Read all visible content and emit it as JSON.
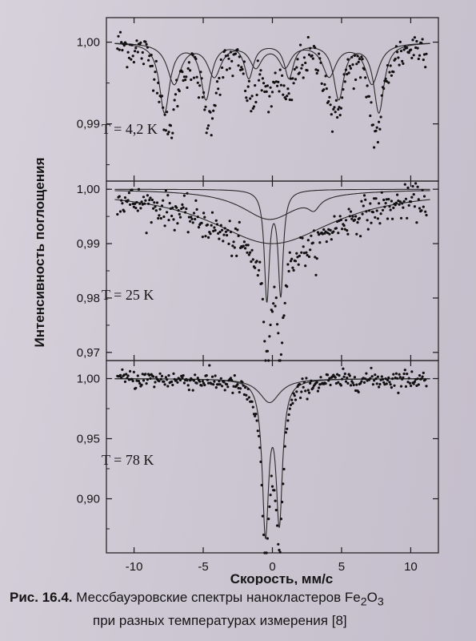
{
  "chart_data": {
    "type": "scatter",
    "xlabel": "Скорость, мм/с",
    "ylabel": "Интенсивность поглощения",
    "xlim": [
      -12,
      12
    ],
    "x_ticks": [
      "-10",
      "-5",
      "0",
      "5",
      "10"
    ],
    "x_tick_values": [
      -10,
      -5,
      0,
      5,
      10
    ],
    "panels": [
      {
        "label": "T = 4,2 K",
        "ylim": [
          0.983,
          1.003
        ],
        "y_ticks": [
          "1,00",
          "0,99"
        ],
        "y_tick_values": [
          1.0,
          0.99
        ],
        "series": [
          {
            "kind": "fit",
            "baseline": 1.0,
            "peaks": [
              [
                -7.8,
                0.0085,
                0.45
              ],
              [
                -4.8,
                0.0068,
                0.45
              ],
              [
                -1.7,
                0.0042,
                0.4
              ],
              [
                1.2,
                0.0042,
                0.4
              ],
              [
                4.8,
                0.0068,
                0.45
              ],
              [
                7.7,
                0.0085,
                0.45
              ]
            ]
          },
          {
            "kind": "fit",
            "baseline": 1.0,
            "peaks": [
              [
                -7.1,
                0.005,
                0.6
              ],
              [
                -4.2,
                0.004,
                0.6
              ],
              [
                -1.2,
                0.0028,
                0.55
              ],
              [
                0.9,
                0.0028,
                0.55
              ],
              [
                4.1,
                0.004,
                0.6
              ],
              [
                7.2,
                0.005,
                0.6
              ]
            ]
          },
          {
            "kind": "data",
            "baseline": 1.0,
            "noise": 0.0012,
            "peaks": [
              [
                -7.5,
                0.011,
                0.6
              ],
              [
                -4.6,
                0.009,
                0.6
              ],
              [
                -1.5,
                0.0065,
                0.55
              ],
              [
                1.1,
                0.0065,
                0.55
              ],
              [
                4.5,
                0.009,
                0.6
              ],
              [
                7.5,
                0.011,
                0.6
              ],
              [
                -0.2,
                0.006,
                0.25
              ]
            ]
          }
        ]
      },
      {
        "label": "T = 25 K",
        "ylim": [
          0.9685,
          1.0015
        ],
        "y_ticks": [
          "1,00",
          "0,99",
          "0,98",
          "0,97"
        ],
        "y_tick_values": [
          1.0,
          0.99,
          0.98,
          0.97
        ],
        "series": [
          {
            "kind": "fit",
            "baseline": 1.0,
            "peaks": [
              [
                0,
                0.01,
                5.5
              ]
            ]
          },
          {
            "kind": "fit",
            "baseline": 1.0,
            "peaks": [
              [
                -0.2,
                0.0055,
                2.5
              ],
              [
                3.0,
                0.002,
                0.5
              ]
            ]
          },
          {
            "kind": "fit",
            "baseline": 1.0,
            "peaks": [
              [
                -0.4,
                0.02,
                0.22
              ],
              [
                0.6,
                0.019,
                0.22
              ]
            ]
          },
          {
            "kind": "data",
            "baseline": 1.0,
            "noise": 0.0015,
            "peaks": [
              [
                0,
                0.012,
                5.0
              ],
              [
                -0.4,
                0.02,
                0.25
              ],
              [
                0.6,
                0.018,
                0.25
              ],
              [
                3.0,
                0.002,
                0.5
              ]
            ]
          }
        ]
      },
      {
        "label": "T = 78 K",
        "ylim": [
          0.855,
          1.015
        ],
        "y_ticks": [
          "1,00",
          "0,95",
          "0,90"
        ],
        "y_tick_values": [
          1.0,
          0.95,
          0.9
        ],
        "series": [
          {
            "kind": "fit",
            "baseline": 1.0,
            "peaks": [
              [
                -0.2,
                0.02,
                0.9
              ]
            ]
          },
          {
            "kind": "fit",
            "baseline": 1.0,
            "peaks": [
              [
                -0.5,
                0.125,
                0.28
              ],
              [
                0.5,
                0.115,
                0.28
              ]
            ]
          },
          {
            "kind": "data",
            "baseline": 1.0,
            "noise": 0.004,
            "peaks": [
              [
                -0.5,
                0.13,
                0.3
              ],
              [
                0.5,
                0.12,
                0.3
              ],
              [
                -0.1,
                0.02,
                1.0
              ]
            ]
          }
        ]
      }
    ]
  },
  "caption": {
    "label": "Рис. 16.4.",
    "line1": "Мессбауэровские спектры нанокластеров Fe",
    "sub1": "2",
    "mid": "O",
    "sub2": "3",
    "line2": "при разных температурах измерения [8]"
  }
}
